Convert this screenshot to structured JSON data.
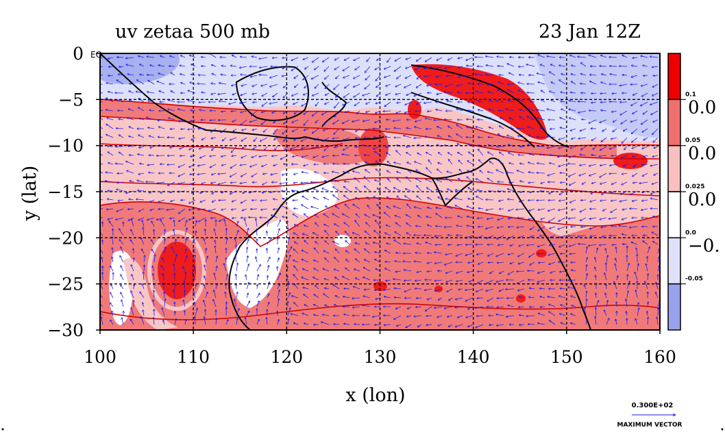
{
  "chart_data": {
    "type": "heatmap",
    "title": "uv zetaa 500 mb",
    "time_label": "23 Jan 12Z",
    "xlabel": "x (lon)",
    "ylabel": "y (lat)",
    "xlim": [
      100,
      160
    ],
    "ylim": [
      -30,
      0
    ],
    "x_ticks": [
      100,
      110,
      120,
      130,
      140,
      150,
      160
    ],
    "y_ticks": [
      0,
      -5,
      -10,
      -15,
      -20,
      -25,
      -30
    ],
    "x_tick_labels": [
      "100",
      "110",
      "120",
      "130",
      "140",
      "150",
      "160"
    ],
    "y_tick_labels": [
      "0",
      "−5",
      "−10",
      "−15",
      "−20",
      "−25",
      "−30"
    ],
    "eq_label": "EQ",
    "grid": true,
    "colorbar": {
      "levels": [
        "0.1",
        "0.05",
        "0.025",
        "0.0",
        "-0.05"
      ],
      "side_labels": [
        "0.0",
        "0.0",
        "0.0",
        "−0."
      ],
      "colors": [
        "#ee0000",
        "#f07070",
        "#f8c0c0",
        "#ffffff",
        "#e0e0fa",
        "#9aa2ee"
      ]
    },
    "fill_colors": {
      "strong_pos": "#ee1c1c",
      "mid_pos": "#f07a7a",
      "weak_pos": "#f8c6c6",
      "neutral": "#ffffff",
      "weak_neg": "#dde0fa",
      "strong_neg": "#a8b0f0",
      "contour": "#d00000",
      "vector": "#1a1aee",
      "coast": "#000000"
    },
    "vector_key": {
      "value_label": "0.300E+02",
      "caption": "MAXIMUM VECTOR"
    }
  }
}
